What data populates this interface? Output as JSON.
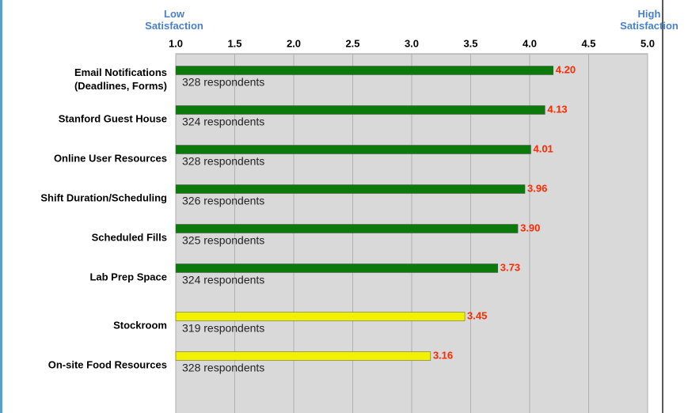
{
  "chart_data": {
    "type": "bar",
    "orientation": "horizontal",
    "low_label": "Low\nSatisfaction",
    "high_label": "High\nSatisfaction",
    "categories": [
      "Email Notifications\n(Deadlines, Forms)",
      "Stanford Guest House",
      "Online User Resources",
      "Shift Duration/Scheduling",
      "Scheduled Fills",
      "Lab Prep Space",
      "Stockroom",
      "On-site Food Resources"
    ],
    "values": [
      4.2,
      4.13,
      4.01,
      3.96,
      3.9,
      3.73,
      3.45,
      3.16
    ],
    "value_labels": [
      "4.20",
      "4.13",
      "4.01",
      "3.96",
      "3.90",
      "3.73",
      "3.45",
      "3.16"
    ],
    "annotations": [
      "328 respondents",
      "324 respondents",
      "328 respondents",
      "326 respondents",
      "325 respondents",
      "324 respondents",
      "319 respondents",
      "328 respondents"
    ],
    "colors": [
      "#0b7a0b",
      "#0b7a0b",
      "#0b7a0b",
      "#0b7a0b",
      "#0b7a0b",
      "#0b7a0b",
      "#f2f200",
      "#f2f200"
    ],
    "value_label_color": "#ff2a00",
    "xlim": [
      1,
      5
    ],
    "xticks": [
      {
        "value": 1,
        "label": "1.0"
      },
      {
        "value": 1.5,
        "label": "1.5"
      },
      {
        "value": 2,
        "label": "2.0"
      },
      {
        "value": 2.5,
        "label": "2.5"
      },
      {
        "value": 3,
        "label": "3.0"
      },
      {
        "value": 3.5,
        "label": "3.5"
      },
      {
        "value": 4,
        "label": "4.0"
      },
      {
        "value": 4.5,
        "label": "4.5"
      },
      {
        "value": 5,
        "label": "5.0"
      }
    ],
    "grid": true
  }
}
